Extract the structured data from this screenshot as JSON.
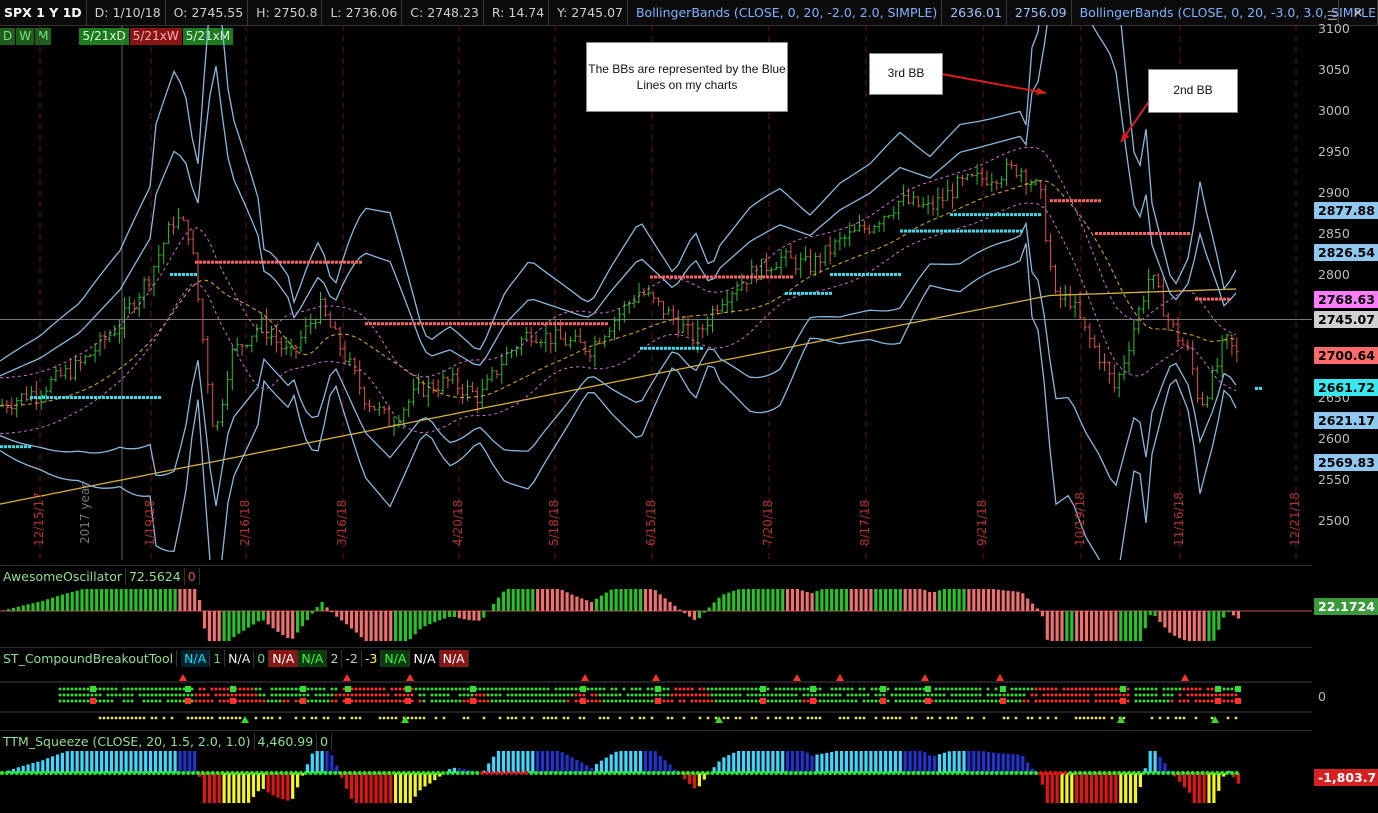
{
  "header": {
    "symbol": "SPX 1 Y 1D",
    "date": "D: 1/10/18",
    "open": "O: 2745.55",
    "high": "H: 2750.8",
    "low": "L: 2736.06",
    "close": "C: 2748.23",
    "range": "R: 14.74",
    "y": "Y: 2745.07",
    "bb1_label": "BollingerBands (CLOSE, 0, 20, -2.0, 2.0, SIMPLE)",
    "bb1_lower": "2636.01",
    "bb1_upper": "2756.09",
    "bb2_label": "BollingerBands (CLOSE, 0, 20, -3.0, 3.0, SIMPLE)",
    "menu_icon": "hamburger-menu-icon",
    "close_icon": "close-icon"
  },
  "aggregations": [
    "D",
    "W",
    "M",
    "",
    "5/21xD",
    "5/21xW",
    "5/21xM"
  ],
  "price_scale": [
    "3100",
    "3050",
    "3000",
    "2950",
    "2900",
    "2850",
    "2800",
    "2750",
    "2700",
    "2650",
    "2600",
    "2550",
    "2500"
  ],
  "price_badges": [
    {
      "text": "2877.88",
      "bg": "#8fc7ef",
      "fg": "#000"
    },
    {
      "text": "2826.54",
      "bg": "#8fc7ef",
      "fg": "#000"
    },
    {
      "text": "2768.63",
      "bg": "#ff7bff",
      "fg": "#000"
    },
    {
      "text": "2745.07",
      "bg": "#d0d0d0",
      "fg": "#000"
    },
    {
      "text": "2700.64",
      "bg": "#ff6a6a",
      "fg": "#000"
    },
    {
      "text": "2661.72",
      "bg": "#38e8f0",
      "fg": "#000"
    },
    {
      "text": "2621.17",
      "bg": "#8fc7ef",
      "fg": "#000"
    },
    {
      "text": "2569.83",
      "bg": "#8fc7ef",
      "fg": "#000"
    }
  ],
  "annotations": {
    "main": "The BBs are represented by the Blue Lines on my charts",
    "third_bb": "3rd BB",
    "second_bb": "2nd BB"
  },
  "date_labels": [
    "12/15/17",
    "1/19/18",
    "2/16/18",
    "3/16/18",
    "4/20/18",
    "5/18/18",
    "6/15/18",
    "7/20/18",
    "8/17/18",
    "9/21/18",
    "10/19/18",
    "11/16/18",
    "12/21/18"
  ],
  "year_label": "2017 year",
  "ao": {
    "name": "AwesomeOscillator",
    "value": "72.5624",
    "zero": "0",
    "badge": "22.1724"
  },
  "cbt": {
    "name": "ST_CompoundBreakoutTool",
    "fields": [
      {
        "t": "N/A",
        "c": "#00e0ff",
        "bg": "#00222b"
      },
      {
        "t": "1",
        "c": "#6bd36b",
        "bg": ""
      },
      {
        "t": "N/A",
        "c": "#eee",
        "bg": ""
      },
      {
        "t": "0",
        "c": "#6bd36b",
        "bg": ""
      },
      {
        "t": "N/A",
        "c": "#fff",
        "bg": "#8a1515"
      },
      {
        "t": "N/A",
        "c": "#3f3",
        "bg": "#0c3a0c"
      },
      {
        "t": "2",
        "c": "#ccc",
        "bg": ""
      },
      {
        "t": "-2",
        "c": "#ccc",
        "bg": ""
      },
      {
        "t": "-3",
        "c": "#ffff55",
        "bg": ""
      },
      {
        "t": "N/A",
        "c": "#3f3",
        "bg": "#0c3a0c"
      },
      {
        "t": "N/A",
        "c": "#fff",
        "bg": ""
      },
      {
        "t": "N/A",
        "c": "#fff",
        "bg": "#8a1515"
      }
    ],
    "axis": "0"
  },
  "ttm": {
    "name": "TTM_Squeeze (CLOSE, 20, 1.5, 2.0, 1.0)",
    "value": "4,460.99",
    "zero": "0",
    "badge": "-1,803.7"
  },
  "colors": {
    "bb": "#8ab8dd",
    "ma200": "#d6b23a",
    "ma20": "#c9a030",
    "up": "#27c227",
    "down": "#e05050",
    "keltner": "#d070d0",
    "dotsBear": "#ff6060",
    "dotsBull": "#33e0f0"
  }
}
